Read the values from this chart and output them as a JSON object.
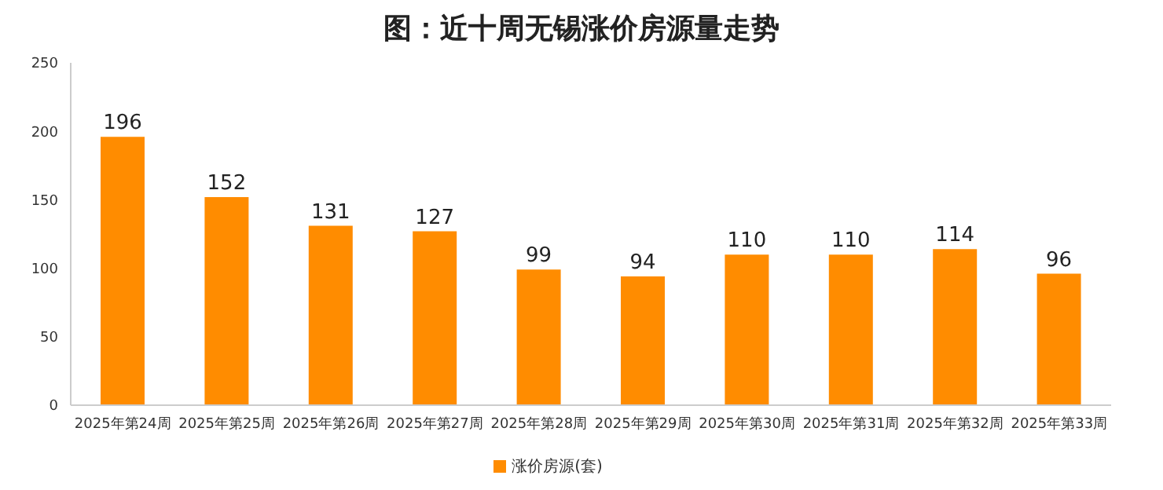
{
  "chart_data": {
    "type": "bar",
    "title": "图：近十周无锡涨价房源量走势",
    "categories": [
      "2025年第24周",
      "2025年第25周",
      "2025年第26周",
      "2025年第27周",
      "2025年第28周",
      "2025年第29周",
      "2025年第30周",
      "2025年第31周",
      "2025年第32周",
      "2025年第33周"
    ],
    "series": [
      {
        "name": "涨价房源(套)",
        "color": "#ff8c00",
        "values": [
          196,
          152,
          131,
          127,
          99,
          94,
          110,
          110,
          114,
          96
        ]
      }
    ],
    "ylim": [
      0,
      250
    ],
    "yticks": [
      0,
      50,
      100,
      150,
      200,
      250
    ],
    "grid": false,
    "legend": "bottom",
    "data_labels": true
  }
}
